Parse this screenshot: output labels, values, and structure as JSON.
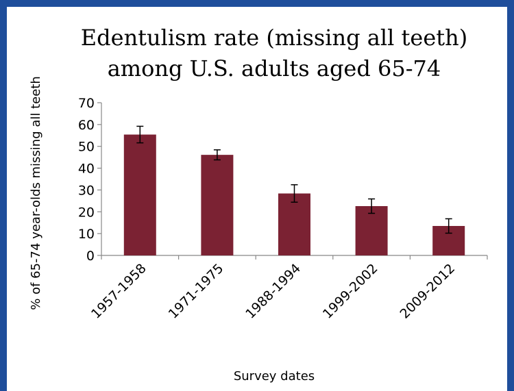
{
  "chart_data": {
    "type": "bar",
    "title_lines": [
      "Edentulism rate (missing all teeth)",
      "among U.S. adults aged 65-74"
    ],
    "xlabel": "Survey dates",
    "ylabel": "% of 65-74 year-olds missing all teeth",
    "categories": [
      "1957-1958",
      "1971-1975",
      "1988-1994",
      "1999-2002",
      "2009-2012"
    ],
    "values": [
      55.4,
      46.1,
      28.4,
      22.6,
      13.5
    ],
    "error": [
      3.8,
      2.3,
      4.0,
      3.3,
      3.3
    ],
    "ylim": [
      0,
      70
    ],
    "yticks": [
      0,
      10,
      20,
      30,
      40,
      50,
      60,
      70
    ],
    "grid": false,
    "legend": "none",
    "bar_color": "#7b2233",
    "background_color": "#ffffff",
    "border_color": "#1f4e9b"
  }
}
